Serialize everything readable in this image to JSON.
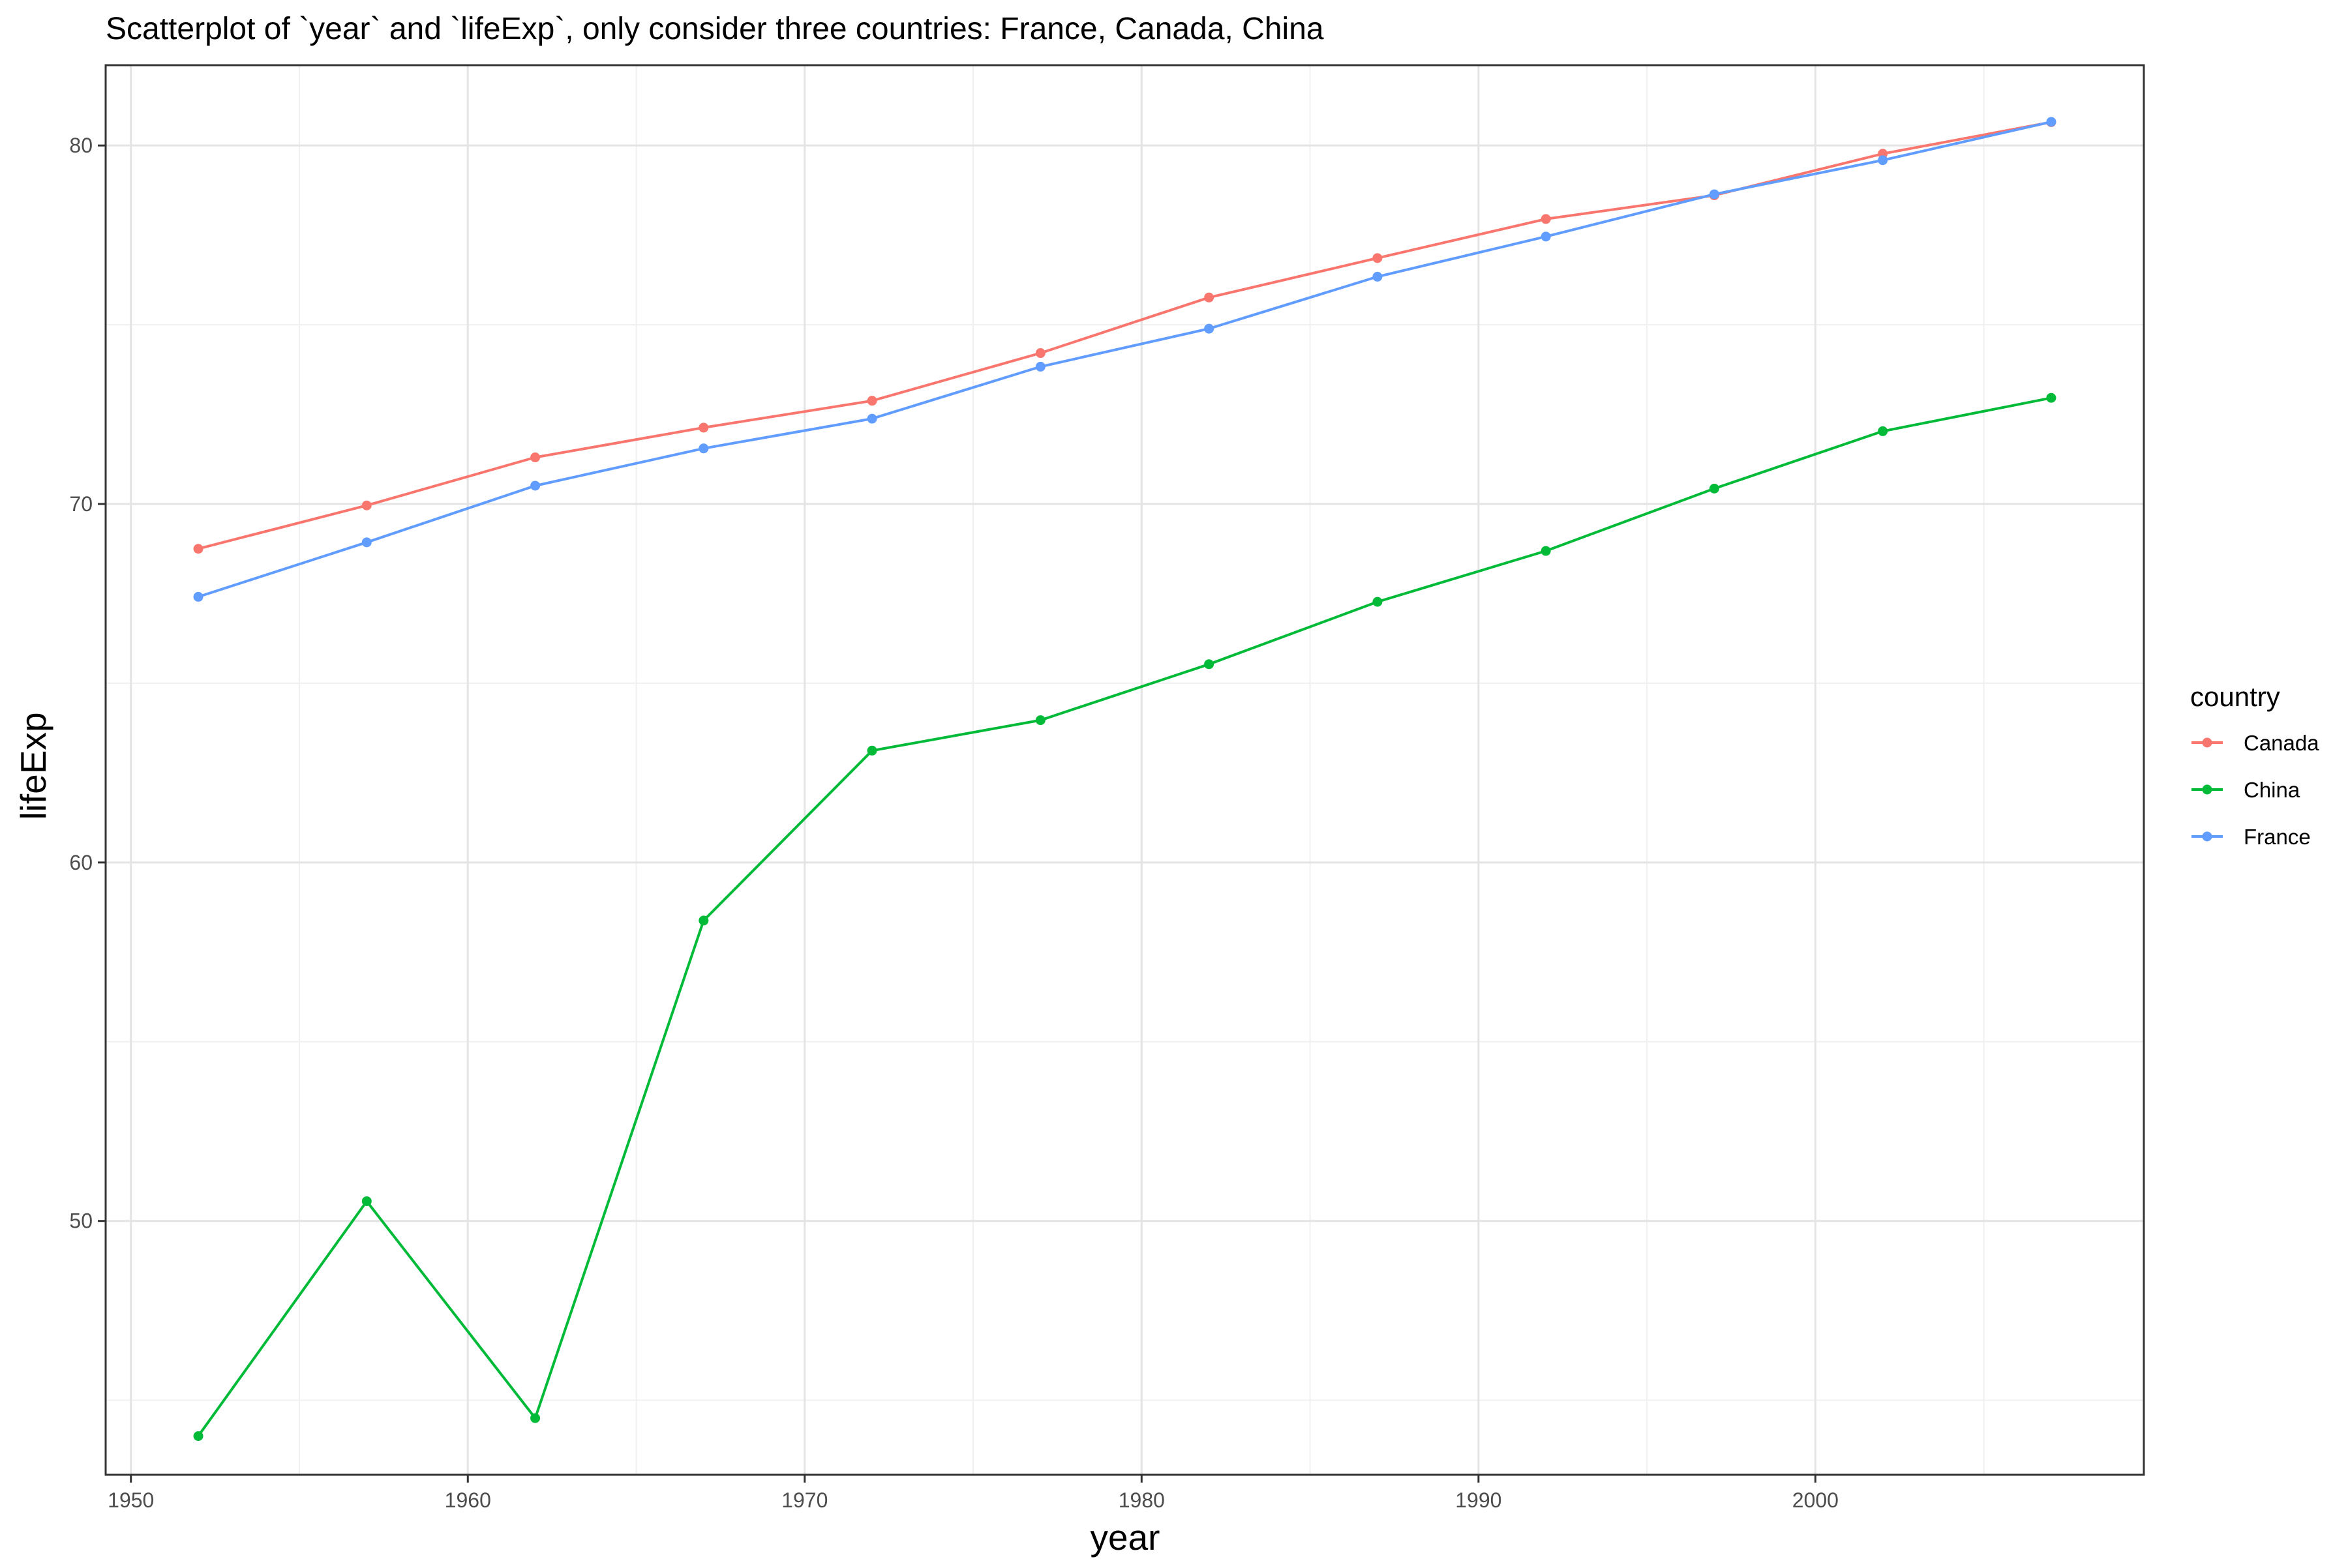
{
  "chart_data": {
    "type": "line",
    "title": "Scatterplot of `year` and `lifeExp`, only consider three countries: France, Canada, China",
    "xlabel": "year",
    "ylabel": "lifeExp",
    "xlim": [
      1949.25,
      2009.75
    ],
    "ylim": [
      42.92,
      82.24
    ],
    "x_ticks": [
      1950,
      1960,
      1970,
      1980,
      1990,
      2000
    ],
    "y_ticks": [
      50,
      60,
      70,
      80
    ],
    "x_minor_ticks": [
      1955,
      1965,
      1975,
      1985,
      1995,
      2005
    ],
    "y_minor_ticks": [
      45,
      55,
      65,
      75
    ],
    "grid": true,
    "legend": {
      "title": "country",
      "position": "right"
    },
    "x": [
      1952,
      1957,
      1962,
      1967,
      1972,
      1977,
      1982,
      1987,
      1992,
      1997,
      2002,
      2007
    ],
    "series": [
      {
        "name": "Canada",
        "color": "#F8766D",
        "values": [
          68.75,
          69.96,
          71.3,
          72.13,
          72.88,
          74.21,
          75.76,
          76.86,
          77.95,
          78.61,
          79.77,
          80.65
        ]
      },
      {
        "name": "China",
        "color": "#00BA38",
        "values": [
          44.0,
          50.55,
          44.5,
          58.38,
          63.12,
          63.97,
          65.53,
          67.27,
          68.69,
          70.43,
          72.03,
          72.96
        ]
      },
      {
        "name": "France",
        "color": "#619CFF",
        "values": [
          67.41,
          68.93,
          70.51,
          71.55,
          72.38,
          73.83,
          74.89,
          76.34,
          77.46,
          78.64,
          79.59,
          80.66
        ]
      }
    ]
  }
}
